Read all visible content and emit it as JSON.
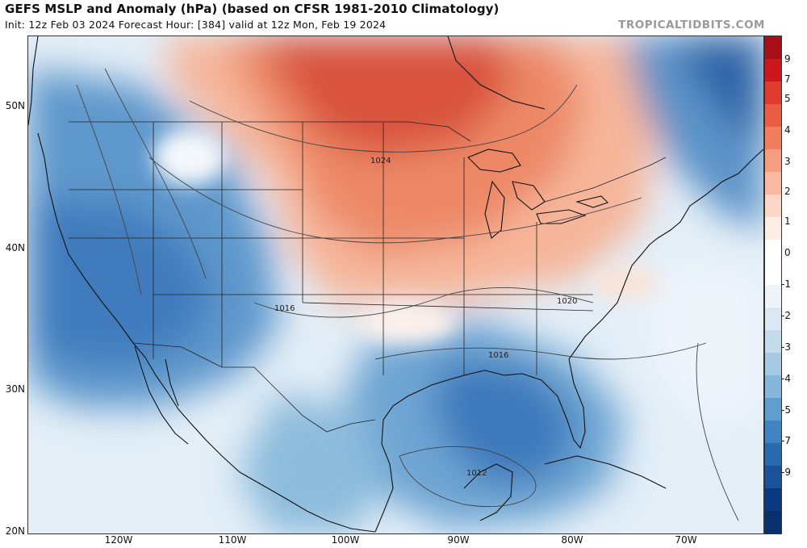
{
  "header": {
    "title": "GEFS MSLP and Anomaly (hPa) (based on CFSR 1981-2010 Climatology)",
    "subtitle": "Init: 12z Feb 03 2024   Forecast Hour: [384]   valid at 12z Mon, Feb 19 2024",
    "brand": "TROPICALTIDBITS.COM"
  },
  "map": {
    "lat_labels": [
      "50N",
      "40N",
      "30N",
      "20N"
    ],
    "lon_labels": [
      "120W",
      "110W",
      "100W",
      "90W",
      "80W",
      "70W"
    ],
    "isobar_labels": [
      "1024",
      "1020",
      "1016",
      "1016",
      "1012"
    ]
  },
  "colorbar": {
    "labels": [
      "9",
      "7",
      "5",
      "4",
      "3",
      "2",
      "1",
      "0",
      "-1",
      "-2",
      "-3",
      "-4",
      "-5",
      "-7",
      "-9"
    ],
    "colors": [
      "#a50f15",
      "#cb181d",
      "#de3b31",
      "#ea5d45",
      "#f07e5f",
      "#f59d80",
      "#f8bba2",
      "#fad7c6",
      "#fdeee5",
      "#ffffff",
      "#ffffff",
      "#eef4fa",
      "#dbe8f3",
      "#c4dbec",
      "#a6cae3",
      "#84b7da",
      "#609ecf",
      "#4184c1",
      "#2a6aae",
      "#1a5199",
      "#0c3a7f",
      "#08306b"
    ],
    "palette": {
      "deep_red": "#c62a2e",
      "red": "#e05a45",
      "salmon": "#f3a586",
      "pale": "#fbe3d6",
      "light_blue": "#c6dcee",
      "blue": "#6fa6d4",
      "deep_blue": "#2b6aae"
    }
  }
}
